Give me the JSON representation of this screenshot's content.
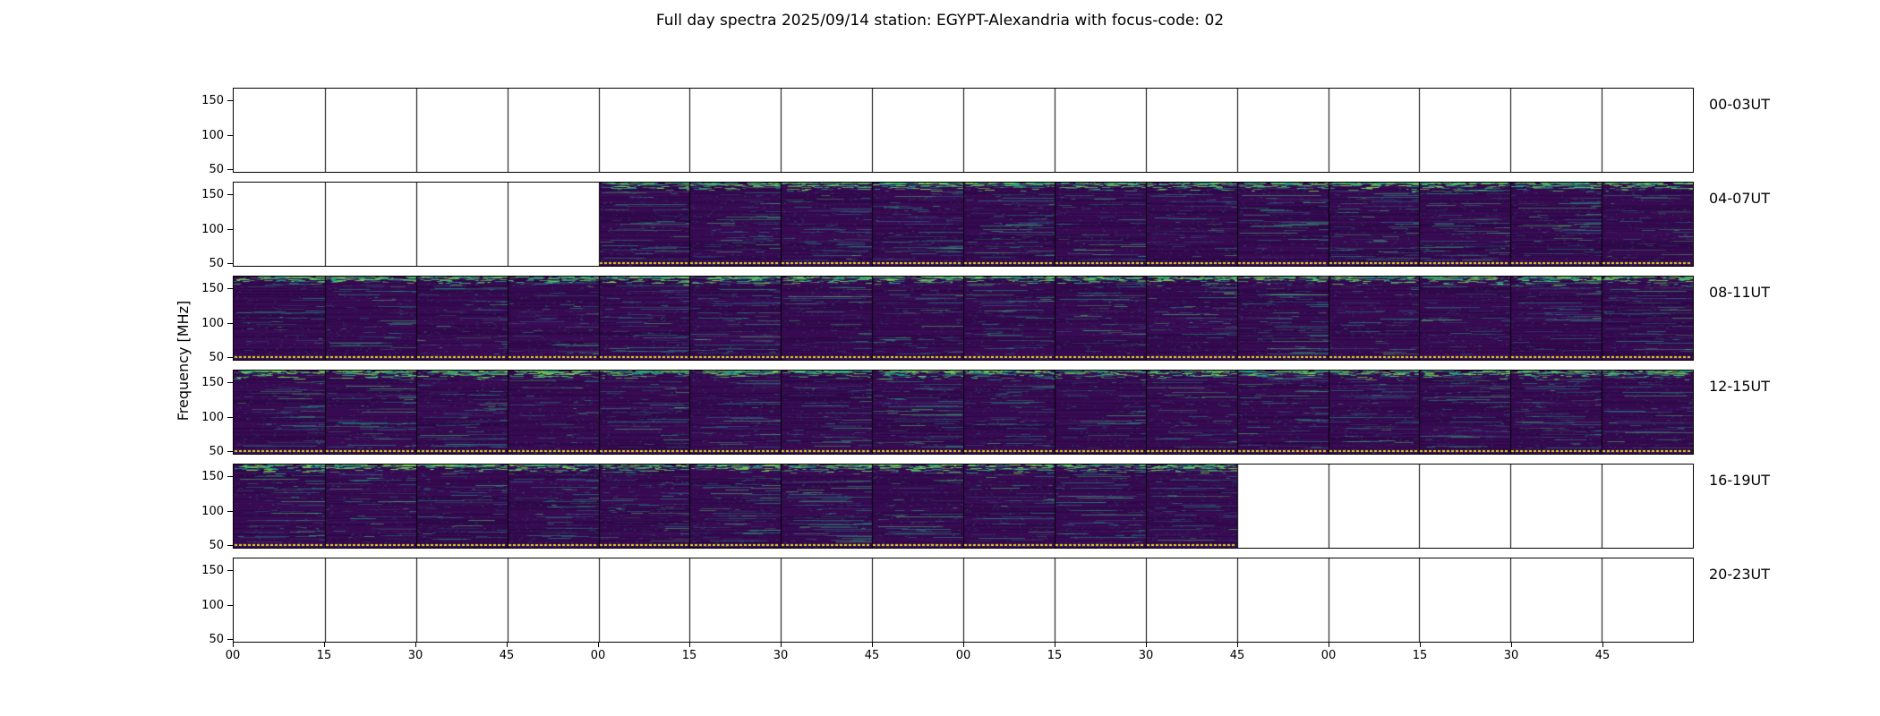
{
  "figure": {
    "title": "Full day spectra 2025/09/14 station: EGYPT-Alexandria with focus-code: 02",
    "ylabel": "Frequency [MHz]"
  },
  "axis": {
    "ytick_labels": [
      "150",
      "100",
      "50"
    ],
    "xtick_labels": [
      "00",
      "15",
      "30",
      "45",
      "00",
      "15",
      "30",
      "45",
      "00",
      "15",
      "30",
      "45",
      "00",
      "15",
      "30",
      "45"
    ]
  },
  "panels_per_row": 16,
  "rows": [
    {
      "label": "00-03UT",
      "fill_start_panel": 0,
      "fill_panel_count": 0
    },
    {
      "label": "04-07UT",
      "fill_start_panel": 4,
      "fill_panel_count": 12
    },
    {
      "label": "08-11UT",
      "fill_start_panel": 0,
      "fill_panel_count": 16
    },
    {
      "label": "12-15UT",
      "fill_start_panel": 0,
      "fill_panel_count": 16
    },
    {
      "label": "16-19UT",
      "fill_start_panel": 0,
      "fill_panel_count": 11
    },
    {
      "label": "20-23UT",
      "fill_start_panel": 0,
      "fill_panel_count": 0
    }
  ],
  "colors": {
    "background": "#ffffff",
    "frame": "#000000",
    "spectrogram_base": "#370a52",
    "streak_teal": "#1fa187",
    "streak_cyan": "#22a884",
    "streak_blue": "#2c728e",
    "bright_green": "#54c568",
    "marker_yellow": "#e7de1f"
  },
  "chart_data": {
    "type": "heatmap",
    "title": "Full day spectra 2025/09/14 station: EGYPT-Alexandria with focus-code: 02",
    "ylabel": "Frequency [MHz]",
    "y_ticks_mhz": [
      50,
      100,
      150
    ],
    "x_tick_minutes": [
      "00",
      "15",
      "30",
      "45"
    ],
    "row_time_blocks": [
      "00-03UT",
      "04-07UT",
      "08-11UT",
      "12-15UT",
      "16-19UT",
      "20-23UT"
    ],
    "panels_per_row": 16,
    "panel_duration_minutes": 15,
    "data_coverage": [
      {
        "time_block": "00-03UT",
        "coverage": "no data (blank panels)"
      },
      {
        "time_block": "04-07UT",
        "coverage": "spectrogram data from 05:00 to 07:59 UT (panels 5-16 of 16 filled)"
      },
      {
        "time_block": "08-11UT",
        "coverage": "full coverage 08:00-11:59 UT (all 16 panels filled)"
      },
      {
        "time_block": "12-15UT",
        "coverage": "full coverage 12:00-15:59 UT (all 16 panels filled)"
      },
      {
        "time_block": "16-19UT",
        "coverage": "spectrogram data from 16:00 to 18:44 UT (panels 1-11 of 16 filled)"
      },
      {
        "time_block": "20-23UT",
        "coverage": "no data (blank panels)"
      }
    ],
    "colormap": "viridis-style spectrogram: dark purple background with teal/green emission streaks, brighter activity band near 150 MHz (top edge), yellow dotted marker line near 50 MHz (bottom edge)",
    "legend": "none",
    "grid": "panel borders only (16 quarter-hour sub-panels per 4-hour row)"
  }
}
